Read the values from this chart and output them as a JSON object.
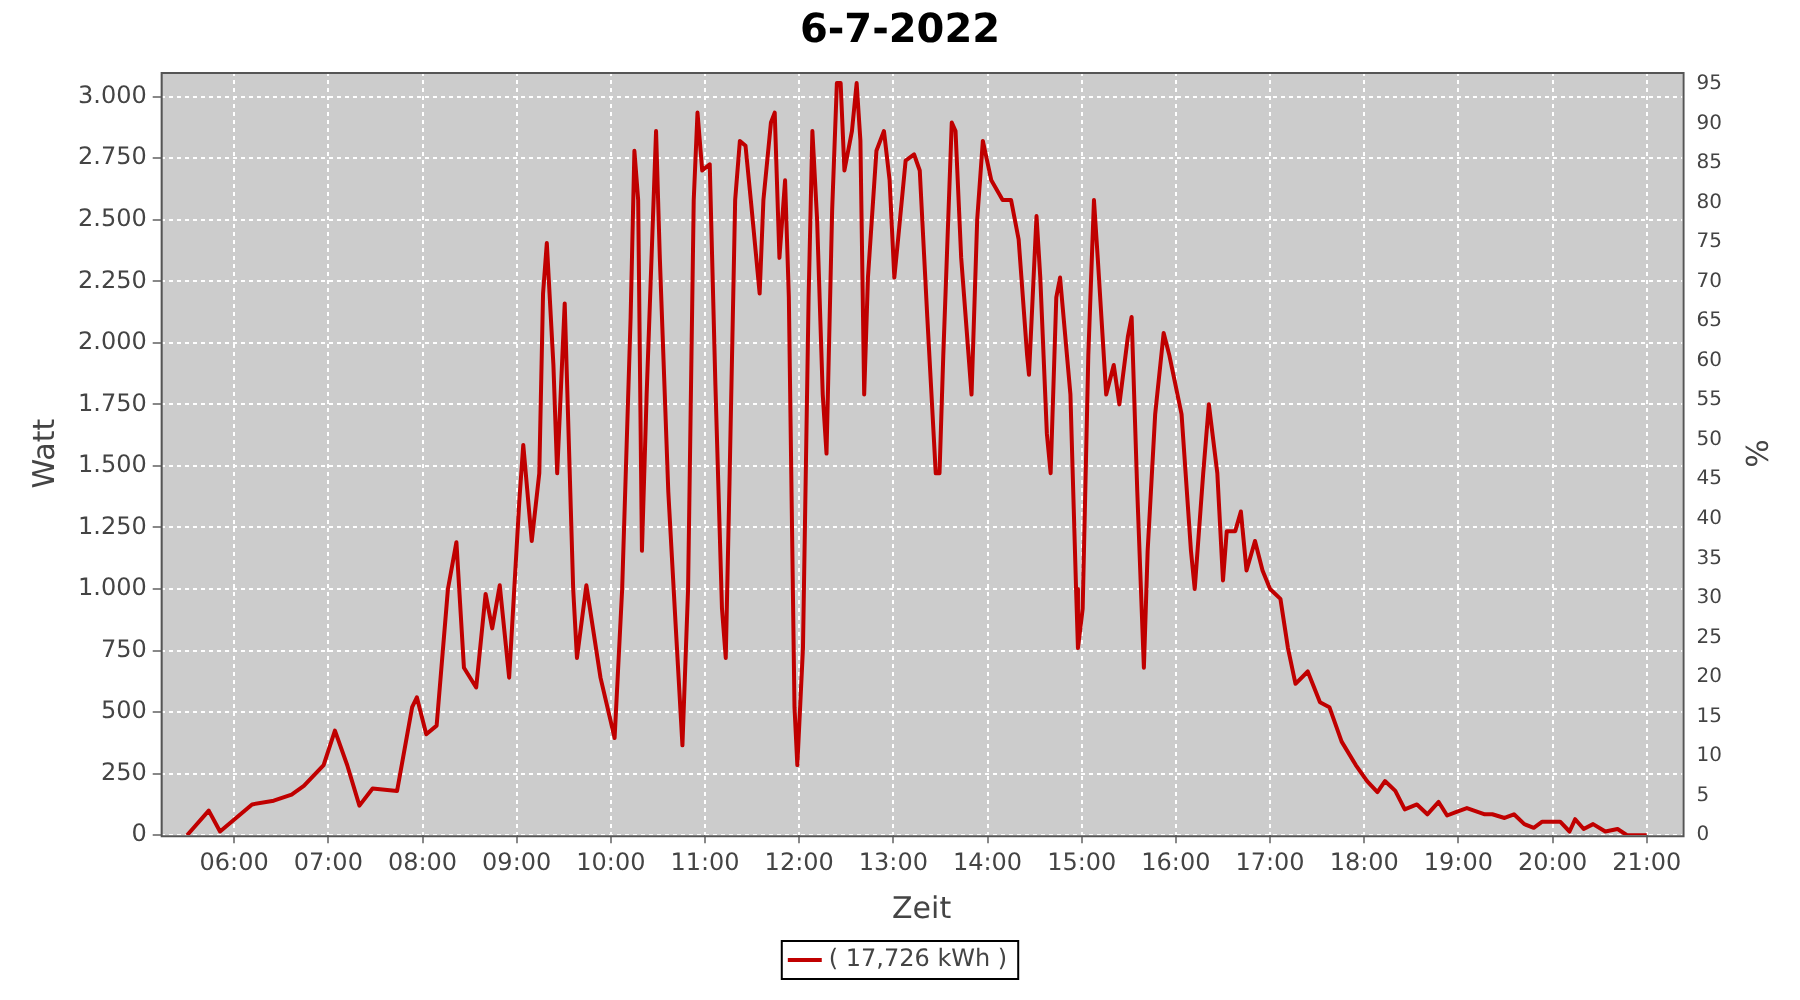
{
  "chart_data": {
    "type": "line",
    "title": "6-7-2022",
    "xlabel": "Zeit",
    "ylabel": "Watt",
    "y2label": "%",
    "xlim": [
      5.22,
      21.38
    ],
    "xticks": [
      {
        "value": 6,
        "label": "06:00"
      },
      {
        "value": 7,
        "label": "07:00"
      },
      {
        "value": 8,
        "label": "08:00"
      },
      {
        "value": 9,
        "label": "09:00"
      },
      {
        "value": 10,
        "label": "10:00"
      },
      {
        "value": 11,
        "label": "11:00"
      },
      {
        "value": 12,
        "label": "12:00"
      },
      {
        "value": 13,
        "label": "13:00"
      },
      {
        "value": 14,
        "label": "14:00"
      },
      {
        "value": 15,
        "label": "15:00"
      },
      {
        "value": 16,
        "label": "16:00"
      },
      {
        "value": 17,
        "label": "17:00"
      },
      {
        "value": 18,
        "label": "18:00"
      },
      {
        "value": 19,
        "label": "19:00"
      },
      {
        "value": 20,
        "label": "20:00"
      },
      {
        "value": 21,
        "label": "21:00"
      }
    ],
    "ylim": [
      0,
      3100
    ],
    "yticks": [
      0,
      250,
      500,
      750,
      {
        "value": 1000,
        "label": "1.000"
      },
      {
        "value": 1250,
        "label": "1.250"
      },
      {
        "value": 1500,
        "label": "1.500"
      },
      {
        "value": 1750,
        "label": "1.750"
      },
      {
        "value": 2000,
        "label": "2.000"
      },
      {
        "value": 2250,
        "label": "2.250"
      },
      {
        "value": 2500,
        "label": "2.500"
      },
      {
        "value": 2750,
        "label": "2.750"
      },
      {
        "value": 3000,
        "label": "3.000"
      }
    ],
    "y2lim": [
      0,
      96.5
    ],
    "y2ticks": [
      0,
      5,
      10,
      15,
      20,
      25,
      30,
      35,
      40,
      45,
      50,
      55,
      60,
      65,
      70,
      75,
      80,
      85,
      90,
      95
    ],
    "grid": true,
    "legend": "bottom",
    "marker": "none",
    "line_style": "solid",
    "series": [
      {
        "name": "( 17,726 kWh )",
        "color": "#c00000",
        "x": [
          5.5,
          5.73,
          5.85,
          6.19,
          6.42,
          6.61,
          6.74,
          6.95,
          7.07,
          7.2,
          7.33,
          7.47,
          7.73,
          7.89,
          7.94,
          8.04,
          8.15,
          8.27,
          8.36,
          8.44,
          8.57,
          8.67,
          8.74,
          8.82,
          8.92,
          9.03,
          9.07,
          9.16,
          9.24,
          9.28,
          9.32,
          9.39,
          9.43,
          9.51,
          9.6,
          9.64,
          9.74,
          9.89,
          10.04,
          10.12,
          10.21,
          10.25,
          10.29,
          10.33,
          10.38,
          10.48,
          10.52,
          10.61,
          10.69,
          10.76,
          10.82,
          10.88,
          10.92,
          10.97,
          11.05,
          11.11,
          11.18,
          11.22,
          11.26,
          11.32,
          11.37,
          11.43,
          11.49,
          11.58,
          11.62,
          11.7,
          11.74,
          11.79,
          11.85,
          11.89,
          11.95,
          11.98,
          12.04,
          12.1,
          12.14,
          12.19,
          12.25,
          12.29,
          12.35,
          12.4,
          12.44,
          12.48,
          12.56,
          12.61,
          12.65,
          12.69,
          12.73,
          12.82,
          12.9,
          12.96,
          13.01,
          13.05,
          13.13,
          13.22,
          13.28,
          13.36,
          13.45,
          13.49,
          13.53,
          13.62,
          13.66,
          13.72,
          13.83,
          13.89,
          13.95,
          14.04,
          14.16,
          14.25,
          14.33,
          14.42,
          14.44,
          14.52,
          14.56,
          14.63,
          14.67,
          14.73,
          14.77,
          14.88,
          14.94,
          14.96,
          15.01,
          15.07,
          15.13,
          15.17,
          15.26,
          15.34,
          15.4,
          15.49,
          15.53,
          15.59,
          15.66,
          15.7,
          15.78,
          15.87,
          15.93,
          16.06,
          16.16,
          16.2,
          16.29,
          16.35,
          16.44,
          16.5,
          16.54,
          16.63,
          16.69,
          16.75,
          16.84,
          16.92,
          17.0,
          17.11,
          17.19,
          17.27,
          17.4,
          17.53,
          17.63,
          17.76,
          17.91,
          18.03,
          18.14,
          18.22,
          18.33,
          18.43,
          18.56,
          18.67,
          18.79,
          18.88,
          18.98,
          19.09,
          19.28,
          19.36,
          19.49,
          19.59,
          19.7,
          19.8,
          19.89,
          20.08,
          20.18,
          20.24,
          20.33,
          20.43,
          20.56,
          20.69,
          20.79,
          21.0
        ],
        "values": [
          0,
          100,
          15,
          125,
          140,
          165,
          200,
          285,
          425,
          285,
          120,
          190,
          180,
          520,
          560,
          410,
          445,
          1000,
          1190,
          680,
          600,
          980,
          840,
          1015,
          640,
          1370,
          1585,
          1195,
          1470,
          2200,
          2405,
          1910,
          1470,
          2160,
          1000,
          720,
          1015,
          640,
          395,
          1000,
          2105,
          2780,
          2580,
          1155,
          1790,
          2860,
          2345,
          1395,
          840,
          365,
          1000,
          2580,
          2935,
          2700,
          2725,
          1830,
          920,
          720,
          1435,
          2580,
          2820,
          2800,
          2565,
          2200,
          2580,
          2895,
          2935,
          2345,
          2660,
          2185,
          520,
          285,
          760,
          2185,
          2860,
          2500,
          1790,
          1550,
          2540,
          3055,
          3055,
          2700,
          2860,
          3055,
          2820,
          1790,
          2265,
          2780,
          2860,
          2660,
          2265,
          2420,
          2740,
          2765,
          2700,
          2105,
          1470,
          1470,
          1950,
          2895,
          2860,
          2345,
          1790,
          2500,
          2820,
          2660,
          2580,
          2580,
          2420,
          1950,
          1870,
          2515,
          2265,
          1630,
          1470,
          2185,
          2265,
          1790,
          1000,
          760,
          920,
          1950,
          2580,
          2345,
          1790,
          1910,
          1750,
          2025,
          2105,
          1395,
          680,
          1155,
          1710,
          2040,
          1950,
          1710,
          1155,
          1000,
          1470,
          1750,
          1470,
          1035,
          1235,
          1235,
          1315,
          1075,
          1195,
          1075,
          1000,
          960,
          760,
          615,
          665,
          540,
          520,
          380,
          285,
          220,
          175,
          220,
          180,
          105,
          125,
          85,
          135,
          80,
          95,
          110,
          85,
          85,
          70,
          85,
          45,
          30,
          55,
          55,
          15,
          65,
          25,
          45,
          15,
          25,
          0,
          0
        ]
      }
    ]
  }
}
